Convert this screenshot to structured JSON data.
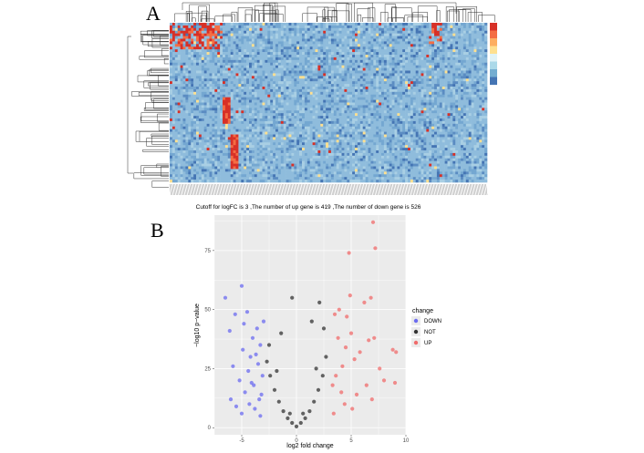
{
  "panels": {
    "a_label": "A",
    "b_label": "B"
  },
  "chart_data": [
    {
      "type": "heatmap",
      "panel": "A",
      "title": "",
      "clustered_rows": true,
      "clustered_columns": true,
      "row_count": 60,
      "column_count": 120,
      "color_scale": {
        "low": "#4575b4",
        "mid": "#e0f3f8",
        "high": "#d73027"
      },
      "notes_visible": "dense high-expression block in top-left rows; light-blue background; sparse red columns in lower rows"
    },
    {
      "type": "scatter",
      "panel": "B",
      "title": "Cutoff for logFC is 3 ,The number of up gene is 419 ,The number of down gene is 526",
      "xlabel": "log2 fold change",
      "ylabel": "−log10 p−value",
      "xlim": [
        -7.5,
        10
      ],
      "ylim": [
        -3,
        90
      ],
      "x_ticks": [
        -5,
        0,
        5,
        10
      ],
      "y_ticks": [
        0,
        25,
        50,
        75
      ],
      "grid": true,
      "legend": {
        "title": "change",
        "position": "right",
        "entries": [
          {
            "label": "DOWN",
            "color": "#6b6bf0"
          },
          {
            "label": "NOT",
            "color": "#333333"
          },
          {
            "label": "UP",
            "color": "#f06b6b"
          }
        ]
      },
      "series": [
        {
          "name": "DOWN",
          "color": "#6b6bf0",
          "points": [
            [
              -6.5,
              55
            ],
            [
              -6.1,
              41
            ],
            [
              -5.6,
              48
            ],
            [
              -5.0,
              60
            ],
            [
              -4.8,
              44
            ],
            [
              -4.5,
              49
            ],
            [
              -4.2,
              30
            ],
            [
              -4.0,
              38
            ],
            [
              -3.6,
              42
            ],
            [
              -3.3,
              35
            ],
            [
              -3.0,
              45
            ],
            [
              -5.8,
              26
            ],
            [
              -5.2,
              20
            ],
            [
              -4.7,
              15
            ],
            [
              -4.4,
              24
            ],
            [
              -3.9,
              18
            ],
            [
              -3.5,
              27
            ],
            [
              -3.2,
              14
            ],
            [
              -6.0,
              12
            ],
            [
              -5.5,
              9
            ],
            [
              -5.0,
              6
            ],
            [
              -4.3,
              10
            ],
            [
              -3.8,
              8
            ],
            [
              -3.4,
              12
            ],
            [
              -3.1,
              22
            ],
            [
              -3.7,
              31
            ],
            [
              -4.1,
              19
            ],
            [
              -4.9,
              33
            ],
            [
              -3.3,
              5
            ]
          ]
        },
        {
          "name": "UP",
          "color": "#f06b6b",
          "points": [
            [
              7.0,
              87
            ],
            [
              4.8,
              74
            ],
            [
              7.2,
              76
            ],
            [
              6.8,
              55
            ],
            [
              6.2,
              53
            ],
            [
              4.9,
              56
            ],
            [
              3.5,
              48
            ],
            [
              3.9,
              50
            ],
            [
              4.6,
              47
            ],
            [
              5.0,
              40
            ],
            [
              6.6,
              37
            ],
            [
              7.1,
              38
            ],
            [
              8.8,
              33
            ],
            [
              9.1,
              32
            ],
            [
              5.8,
              32
            ],
            [
              4.5,
              34
            ],
            [
              3.8,
              38
            ],
            [
              4.2,
              26
            ],
            [
              5.3,
              29
            ],
            [
              6.4,
              18
            ],
            [
              8.0,
              20
            ],
            [
              5.5,
              14
            ],
            [
              4.1,
              15
            ],
            [
              6.9,
              12
            ],
            [
              3.6,
              22
            ],
            [
              4.4,
              10
            ],
            [
              5.1,
              8
            ],
            [
              3.3,
              18
            ],
            [
              9.0,
              19
            ],
            [
              7.6,
              25
            ],
            [
              3.4,
              6
            ]
          ]
        },
        {
          "name": "NOT",
          "color": "#333333",
          "points": [
            [
              0.0,
              0.5
            ],
            [
              0.4,
              2
            ],
            [
              -0.4,
              2
            ],
            [
              0.8,
              4
            ],
            [
              -0.8,
              4
            ],
            [
              1.2,
              7
            ],
            [
              -1.2,
              7
            ],
            [
              1.6,
              11
            ],
            [
              -1.6,
              11
            ],
            [
              2.0,
              16
            ],
            [
              -2.0,
              16
            ],
            [
              2.4,
              22
            ],
            [
              -2.4,
              22
            ],
            [
              2.7,
              30
            ],
            [
              -2.7,
              28
            ],
            [
              1.4,
              45
            ],
            [
              2.1,
              53
            ],
            [
              -1.4,
              40
            ],
            [
              -0.4,
              55
            ],
            [
              2.5,
              42
            ],
            [
              -2.5,
              35
            ],
            [
              1.8,
              25
            ],
            [
              -1.8,
              24
            ],
            [
              0.6,
              6
            ],
            [
              -0.6,
              6
            ]
          ]
        }
      ]
    }
  ]
}
